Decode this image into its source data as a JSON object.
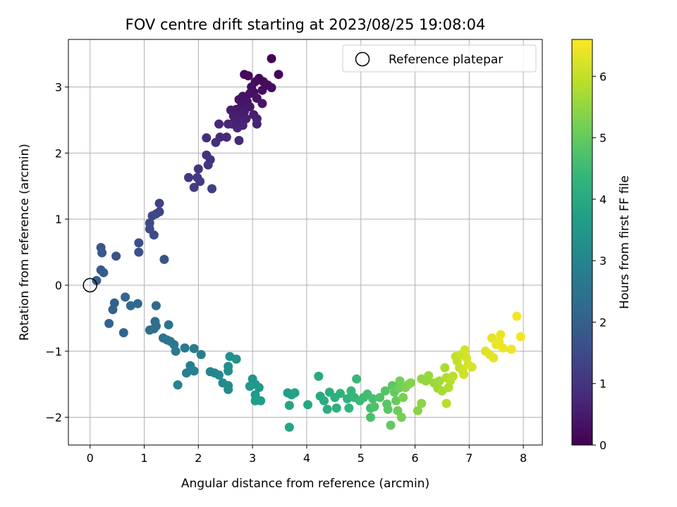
{
  "chart_data": {
    "type": "scatter",
    "title": "FOV centre drift starting at 2023/08/25 19:08:04",
    "xlabel": "Angular distance from reference (arcmin)",
    "ylabel": "Rotation from reference (arcmin)",
    "xlim": [
      -0.4,
      8.35
    ],
    "ylim": [
      -2.42,
      3.72
    ],
    "xticks": [
      0,
      1,
      2,
      3,
      4,
      5,
      6,
      7,
      8
    ],
    "yticks": [
      -2,
      -1,
      0,
      1,
      2,
      3
    ],
    "grid": true,
    "legend": {
      "label": "Reference platepar",
      "placement": "top-right",
      "marker": "hollow circle"
    },
    "reference_point": {
      "x": 0,
      "y": 0
    },
    "colorbar": {
      "label": "Hours from first FF file",
      "range": [
        0,
        6.6
      ],
      "ticks": [
        0,
        1,
        2,
        3,
        4,
        5,
        6
      ],
      "colormap": "viridis"
    },
    "colormap_stops": [
      "#440154",
      "#482878",
      "#3e4a89",
      "#31688e",
      "#26828e",
      "#1f9e89",
      "#35b779",
      "#6ece58",
      "#b5de2b",
      "#fde725"
    ],
    "point_columns": [
      "x",
      "y",
      "hours"
    ],
    "points": [
      [
        3.35,
        3.43,
        0.05
      ],
      [
        3.48,
        3.19,
        0.08
      ],
      [
        2.85,
        3.19,
        0.1
      ],
      [
        2.92,
        3.17,
        0.12
      ],
      [
        3.12,
        3.13,
        0.14
      ],
      [
        3.2,
        3.08,
        0.16
      ],
      [
        3.05,
        3.08,
        0.18
      ],
      [
        3.28,
        3.03,
        0.2
      ],
      [
        3.35,
        2.99,
        0.22
      ],
      [
        3.18,
        2.95,
        0.24
      ],
      [
        2.98,
        3.0,
        0.26
      ],
      [
        3.02,
        2.92,
        0.28
      ],
      [
        2.95,
        2.9,
        0.3
      ],
      [
        2.82,
        2.86,
        0.32
      ],
      [
        3.08,
        2.83,
        0.34
      ],
      [
        2.75,
        2.81,
        0.36
      ],
      [
        2.9,
        2.78,
        0.38
      ],
      [
        3.18,
        2.75,
        0.4
      ],
      [
        2.8,
        2.72,
        0.42
      ],
      [
        2.95,
        2.7,
        0.44
      ],
      [
        2.7,
        2.66,
        0.46
      ],
      [
        2.85,
        2.63,
        0.48
      ],
      [
        2.6,
        2.65,
        0.5
      ],
      [
        2.78,
        2.6,
        0.52
      ],
      [
        3.02,
        2.58,
        0.54
      ],
      [
        2.65,
        2.56,
        0.56
      ],
      [
        2.88,
        2.52,
        0.58
      ],
      [
        3.08,
        2.52,
        0.6
      ],
      [
        2.75,
        2.48,
        0.62
      ],
      [
        2.62,
        2.44,
        0.64
      ],
      [
        3.08,
        2.44,
        0.66
      ],
      [
        2.82,
        2.42,
        0.68
      ],
      [
        2.72,
        2.38,
        0.7
      ],
      [
        2.55,
        2.44,
        0.72
      ],
      [
        2.38,
        2.44,
        0.74
      ],
      [
        2.4,
        2.24,
        0.76
      ],
      [
        2.52,
        2.24,
        0.78
      ],
      [
        2.75,
        2.19,
        0.8
      ],
      [
        2.15,
        2.23,
        0.82
      ],
      [
        2.32,
        2.16,
        0.86
      ],
      [
        2.15,
        1.97,
        0.9
      ],
      [
        2.22,
        1.9,
        0.94
      ],
      [
        2.0,
        1.76,
        0.98
      ],
      [
        2.18,
        1.82,
        1.02
      ],
      [
        1.82,
        1.63,
        1.06
      ],
      [
        1.98,
        1.63,
        1.1
      ],
      [
        2.03,
        1.57,
        1.14
      ],
      [
        1.92,
        1.48,
        1.18
      ],
      [
        2.25,
        1.46,
        1.22
      ],
      [
        1.28,
        1.24,
        1.28
      ],
      [
        1.28,
        1.11,
        1.32
      ],
      [
        1.22,
        1.08,
        1.36
      ],
      [
        1.15,
        1.05,
        1.4
      ],
      [
        1.1,
        0.94,
        1.44
      ],
      [
        1.1,
        0.85,
        1.48
      ],
      [
        1.18,
        0.76,
        1.52
      ],
      [
        0.9,
        0.64,
        1.58
      ],
      [
        0.9,
        0.5,
        1.62
      ],
      [
        0.48,
        0.44,
        1.66
      ],
      [
        1.37,
        0.39,
        1.7
      ],
      [
        0.2,
        0.57,
        1.76
      ],
      [
        0.22,
        0.49,
        1.82
      ],
      [
        0.2,
        0.23,
        1.86
      ],
      [
        0.25,
        0.19,
        1.9
      ],
      [
        0.12,
        0.07,
        1.95
      ],
      [
        0.45,
        -0.27,
        2.0
      ],
      [
        0.42,
        -0.37,
        2.04
      ],
      [
        0.35,
        -0.58,
        2.08
      ],
      [
        0.62,
        -0.72,
        2.12
      ],
      [
        0.65,
        -0.18,
        2.16
      ],
      [
        0.75,
        -0.31,
        2.2
      ],
      [
        0.88,
        -0.28,
        2.24
      ],
      [
        1.22,
        -0.31,
        2.28
      ],
      [
        1.2,
        -0.55,
        2.32
      ],
      [
        1.22,
        -0.62,
        2.36
      ],
      [
        1.1,
        -0.68,
        2.4
      ],
      [
        1.18,
        -0.66,
        2.44
      ],
      [
        1.45,
        -0.6,
        2.48
      ],
      [
        1.35,
        -0.8,
        2.52
      ],
      [
        1.42,
        -0.83,
        2.56
      ],
      [
        1.48,
        -0.85,
        2.6
      ],
      [
        1.55,
        -0.9,
        2.64
      ],
      [
        1.58,
        -1.0,
        2.68
      ],
      [
        1.75,
        -0.95,
        2.72
      ],
      [
        1.92,
        -0.96,
        2.76
      ],
      [
        2.05,
        -1.05,
        2.8
      ],
      [
        1.85,
        -1.22,
        2.84
      ],
      [
        1.78,
        -1.33,
        2.88
      ],
      [
        1.92,
        -1.3,
        2.92
      ],
      [
        1.62,
        -1.51,
        2.96
      ],
      [
        2.22,
        -1.31,
        3.0
      ],
      [
        2.3,
        -1.33,
        3.04
      ],
      [
        2.38,
        -1.36,
        3.08
      ],
      [
        2.45,
        -1.48,
        3.12
      ],
      [
        2.55,
        -1.52,
        3.16
      ],
      [
        2.55,
        -1.58,
        3.2
      ],
      [
        2.55,
        -1.3,
        3.24
      ],
      [
        2.55,
        -1.23,
        3.28
      ],
      [
        2.58,
        -1.08,
        3.32
      ],
      [
        2.7,
        -1.12,
        3.36
      ],
      [
        3.0,
        -1.42,
        3.44
      ],
      [
        3.05,
        -1.5,
        3.48
      ],
      [
        2.95,
        -1.53,
        3.52
      ],
      [
        3.12,
        -1.55,
        3.56
      ],
      [
        3.05,
        -1.66,
        3.6
      ],
      [
        3.05,
        -1.75,
        3.64
      ],
      [
        3.15,
        -1.75,
        3.68
      ],
      [
        3.65,
        -1.63,
        3.72
      ],
      [
        3.72,
        -1.66,
        3.76
      ],
      [
        3.78,
        -1.63,
        3.8
      ],
      [
        3.68,
        -1.82,
        3.84
      ],
      [
        3.68,
        -2.15,
        3.88
      ],
      [
        4.02,
        -1.81,
        3.92
      ],
      [
        4.22,
        -1.38,
        3.96
      ],
      [
        4.25,
        -1.68,
        4.0
      ],
      [
        4.32,
        -1.75,
        4.04
      ],
      [
        4.42,
        -1.62,
        4.08
      ],
      [
        4.38,
        -1.88,
        4.12
      ],
      [
        4.52,
        -1.7,
        4.16
      ],
      [
        4.55,
        -1.86,
        4.2
      ],
      [
        4.62,
        -1.64,
        4.24
      ],
      [
        4.75,
        -1.72,
        4.28
      ],
      [
        4.78,
        -1.86,
        4.32
      ],
      [
        4.82,
        -1.6,
        4.36
      ],
      [
        4.88,
        -1.7,
        4.4
      ],
      [
        4.92,
        -1.42,
        4.44
      ],
      [
        4.98,
        -1.75,
        4.48
      ],
      [
        5.05,
        -1.7,
        4.52
      ],
      [
        5.12,
        -1.65,
        4.56
      ],
      [
        5.18,
        -1.86,
        4.6
      ],
      [
        5.22,
        -1.72,
        4.64
      ],
      [
        5.18,
        -2.0,
        4.68
      ],
      [
        5.25,
        -1.84,
        4.72
      ],
      [
        5.35,
        -1.7,
        4.76
      ],
      [
        5.45,
        -1.6,
        4.8
      ],
      [
        5.48,
        -1.8,
        4.84
      ],
      [
        5.5,
        -1.88,
        4.88
      ],
      [
        5.58,
        -1.52,
        4.92
      ],
      [
        5.55,
        -2.12,
        4.96
      ],
      [
        5.62,
        -1.62,
        5.0
      ],
      [
        5.65,
        -1.75,
        5.04
      ],
      [
        5.68,
        -1.9,
        5.08
      ],
      [
        5.7,
        -1.56,
        5.12
      ],
      [
        5.72,
        -1.45,
        5.16
      ],
      [
        5.75,
        -2.0,
        5.2
      ],
      [
        5.78,
        -1.7,
        5.24
      ],
      [
        5.82,
        -1.55,
        5.28
      ],
      [
        5.88,
        -1.5,
        5.32
      ],
      [
        5.92,
        -1.48,
        5.36
      ],
      [
        6.05,
        -1.9,
        5.4
      ],
      [
        6.12,
        -1.79,
        5.44
      ],
      [
        6.12,
        -1.42,
        5.48
      ],
      [
        6.2,
        -1.45,
        5.52
      ],
      [
        6.25,
        -1.37,
        5.56
      ],
      [
        6.35,
        -1.48,
        5.6
      ],
      [
        6.42,
        -1.56,
        5.64
      ],
      [
        6.45,
        -1.45,
        5.68
      ],
      [
        6.5,
        -1.6,
        5.72
      ],
      [
        6.55,
        -1.25,
        5.76
      ],
      [
        6.58,
        -1.4,
        5.8
      ],
      [
        6.62,
        -1.55,
        5.84
      ],
      [
        6.65,
        -1.45,
        5.88
      ],
      [
        6.58,
        -1.79,
        5.9
      ],
      [
        6.7,
        -1.38,
        5.92
      ],
      [
        6.75,
        -1.08,
        5.96
      ],
      [
        6.78,
        -1.15,
        6.0
      ],
      [
        6.82,
        -1.25,
        6.04
      ],
      [
        6.85,
        -1.05,
        6.08
      ],
      [
        6.88,
        -1.3,
        6.12
      ],
      [
        6.9,
        -1.35,
        6.14
      ],
      [
        6.92,
        -0.98,
        6.16
      ],
      [
        6.95,
        -1.1,
        6.18
      ],
      [
        6.98,
        -1.2,
        6.2
      ],
      [
        7.05,
        -1.24,
        6.22
      ],
      [
        7.3,
        -1.0,
        6.26
      ],
      [
        7.38,
        -1.05,
        6.3
      ],
      [
        7.42,
        -0.8,
        6.34
      ],
      [
        7.45,
        -1.1,
        6.36
      ],
      [
        7.5,
        -0.9,
        6.38
      ],
      [
        7.55,
        -0.85,
        6.4
      ],
      [
        7.58,
        -0.75,
        6.42
      ],
      [
        7.62,
        -0.95,
        6.44
      ],
      [
        7.78,
        -0.97,
        6.46
      ],
      [
        7.88,
        -0.47,
        6.48
      ],
      [
        7.95,
        -0.78,
        6.5
      ]
    ]
  }
}
